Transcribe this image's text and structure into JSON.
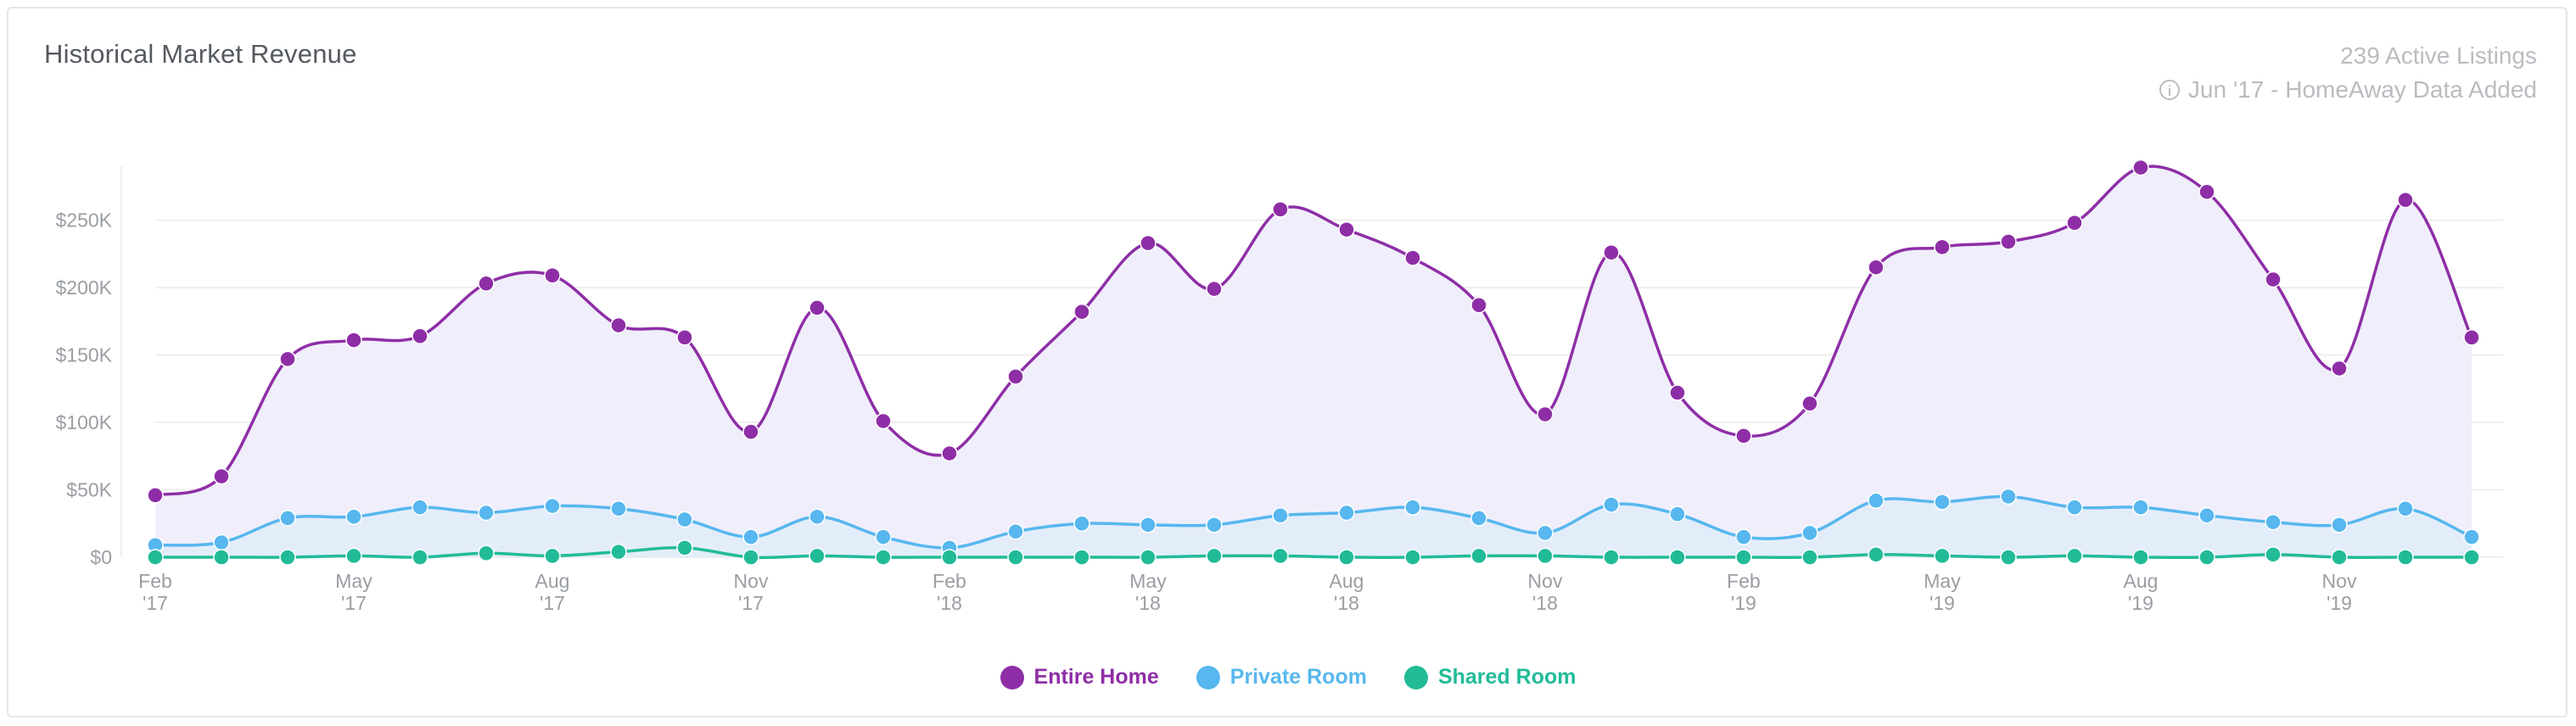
{
  "header": {
    "title": "Historical Market Revenue",
    "listings": "239 Active Listings",
    "note": "Jun '17 - HomeAway Data Added",
    "note_icon": "info-icon"
  },
  "chart_data": {
    "type": "area",
    "title": "Historical Market Revenue",
    "ylim": [
      0,
      290000
    ],
    "y_ticks": [
      0,
      50000,
      100000,
      150000,
      200000,
      250000
    ],
    "y_tick_labels": [
      "$0",
      "$50K",
      "$100K",
      "$150K",
      "$200K",
      "$250K"
    ],
    "x": [
      "Feb '17",
      "Mar '17",
      "Apr '17",
      "May '17",
      "Jun '17",
      "Jul '17",
      "Aug '17",
      "Sep '17",
      "Oct '17",
      "Nov '17",
      "Dec '17",
      "Jan '18",
      "Feb '18",
      "Mar '18",
      "Apr '18",
      "May '18",
      "Jun '18",
      "Jul '18",
      "Aug '18",
      "Sep '18",
      "Oct '18",
      "Nov '18",
      "Dec '18",
      "Jan '19",
      "Feb '19",
      "Mar '19",
      "Apr '19",
      "May '19",
      "Jun '19",
      "Jul '19",
      "Aug '19",
      "Sep '19",
      "Oct '19",
      "Nov '19",
      "Dec '19",
      "Jan '20"
    ],
    "x_tick_labels": [
      {
        "index": 0,
        "line1": "Feb",
        "line2": "'17"
      },
      {
        "index": 3,
        "line1": "May",
        "line2": "'17"
      },
      {
        "index": 6,
        "line1": "Aug",
        "line2": "'17"
      },
      {
        "index": 9,
        "line1": "Nov",
        "line2": "'17"
      },
      {
        "index": 12,
        "line1": "Feb",
        "line2": "'18"
      },
      {
        "index": 15,
        "line1": "May",
        "line2": "'18"
      },
      {
        "index": 18,
        "line1": "Aug",
        "line2": "'18"
      },
      {
        "index": 21,
        "line1": "Nov",
        "line2": "'18"
      },
      {
        "index": 24,
        "line1": "Feb",
        "line2": "'19"
      },
      {
        "index": 27,
        "line1": "May",
        "line2": "'19"
      },
      {
        "index": 30,
        "line1": "Aug",
        "line2": "'19"
      },
      {
        "index": 33,
        "line1": "Nov",
        "line2": "'19"
      }
    ],
    "series": [
      {
        "name": "Entire Home",
        "color": "#8e2ea6",
        "fill": "#efedfb",
        "values": [
          46000,
          60000,
          147000,
          161000,
          164000,
          203000,
          209000,
          172000,
          163000,
          93000,
          185000,
          101000,
          77000,
          134000,
          182000,
          233000,
          199000,
          258000,
          243000,
          222000,
          187000,
          106000,
          226000,
          122000,
          90000,
          114000,
          215000,
          230000,
          234000,
          248000,
          289000,
          271000,
          206000,
          140000,
          265000,
          163000
        ]
      },
      {
        "name": "Private Room",
        "color": "#57b7ee",
        "fill": "#e1ecfa",
        "values": [
          9000,
          11000,
          29000,
          30000,
          37000,
          33000,
          38000,
          36000,
          28000,
          15000,
          30000,
          15000,
          7000,
          19000,
          25000,
          24000,
          24000,
          31000,
          33000,
          37000,
          29000,
          18000,
          39000,
          32000,
          15000,
          18000,
          42000,
          41000,
          45000,
          37000,
          37000,
          31000,
          26000,
          24000,
          36000,
          15000
        ]
      },
      {
        "name": "Shared Room",
        "color": "#22bb98",
        "fill": "none",
        "values": [
          0,
          0,
          0,
          1000,
          0,
          3000,
          1000,
          4000,
          7000,
          0,
          1000,
          0,
          0,
          0,
          0,
          0,
          1000,
          1000,
          0,
          0,
          1000,
          1000,
          0,
          0,
          0,
          0,
          2000,
          1000,
          0,
          1000,
          0,
          0,
          2000,
          0,
          0,
          0
        ]
      }
    ],
    "legend_position": "bottom-center",
    "grid": true
  }
}
